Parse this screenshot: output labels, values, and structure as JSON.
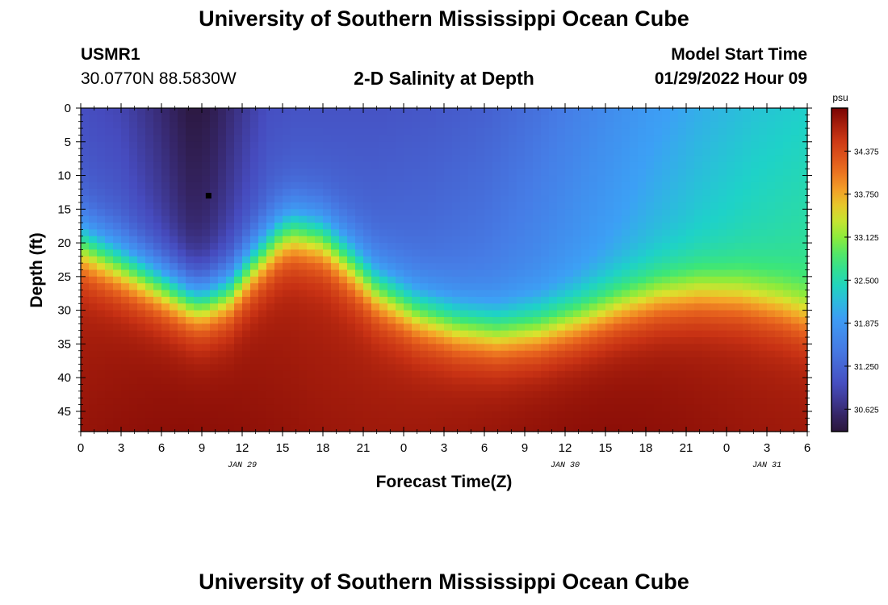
{
  "page": {
    "title": "University of Southern Mississippi Ocean Cube",
    "footer_title": "University of Southern Mississippi Ocean Cube"
  },
  "header": {
    "station_id": "USMR1",
    "location": "30.0770N  88.5830W",
    "chart_title": "2-D Salinity at Depth",
    "model_start_label": "Model Start Time",
    "model_start_value": "01/29/2022 Hour 09"
  },
  "chart_data": {
    "type": "heatmap",
    "title": "2-D Salinity at Depth",
    "xlabel": "Forecast Time(Z)",
    "ylabel": "Depth (ft)",
    "x_hours_range": [
      0,
      54
    ],
    "x_tick_hours": [
      0,
      3,
      6,
      9,
      12,
      15,
      18,
      21,
      24,
      27,
      30,
      33,
      36,
      39,
      42,
      45,
      48,
      51,
      54
    ],
    "x_tick_labels": [
      "0",
      "3",
      "6",
      "9",
      "12",
      "15",
      "18",
      "21",
      "0",
      "3",
      "6",
      "9",
      "12",
      "15",
      "18",
      "21",
      "0",
      "3",
      "6"
    ],
    "date_labels": [
      {
        "text": "JAN 29",
        "hour": 12
      },
      {
        "text": "JAN 30",
        "hour": 36
      },
      {
        "text": "JAN 31",
        "hour": 51
      }
    ],
    "y_range_ft": [
      0,
      48
    ],
    "y_ticks": [
      0,
      5,
      10,
      15,
      20,
      25,
      30,
      35,
      40,
      45
    ],
    "colorbar": {
      "unit": "psu",
      "range": [
        30.3,
        35.0
      ],
      "ticks": [
        30.625,
        31.25,
        31.875,
        32.5,
        33.125,
        33.75,
        34.375
      ],
      "tick_labels": [
        "30.625",
        "31.250",
        "31.875",
        "32.500",
        "33.125",
        "33.750",
        "34.375"
      ]
    },
    "salinity_model": {
      "surface_hours": [
        0,
        3,
        6,
        8,
        9,
        10,
        12,
        14,
        16,
        19,
        22,
        26,
        30,
        34,
        38,
        42,
        46,
        50,
        54
      ],
      "surface_psu": [
        31.0,
        30.9,
        30.6,
        30.35,
        30.35,
        30.45,
        30.75,
        31.0,
        31.05,
        31.05,
        31.05,
        31.1,
        31.2,
        31.4,
        31.65,
        31.9,
        32.1,
        32.25,
        32.35
      ],
      "halocline_hours": [
        0,
        3,
        6,
        8,
        9,
        11,
        13,
        15,
        16,
        18,
        20,
        22,
        25,
        28,
        31,
        34,
        37,
        40,
        43,
        46,
        49,
        52,
        54
      ],
      "halocline_ft": [
        20.5,
        23.5,
        26.5,
        28.5,
        29,
        27.5,
        23,
        19,
        18.5,
        19.5,
        23,
        27,
        30.5,
        32.5,
        33.5,
        33,
        31.5,
        29.5,
        28,
        27.5,
        28,
        29.5,
        31
      ],
      "bottom_psu": 34.85,
      "feature_marker": {
        "hour": 9.5,
        "depth_ft": 13
      }
    }
  }
}
